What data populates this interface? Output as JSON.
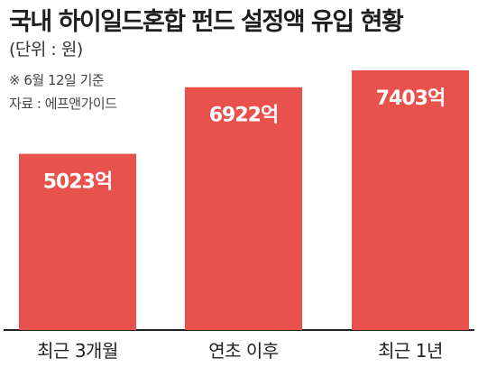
{
  "chart_data": {
    "type": "bar",
    "title": "국내 하이일드혼합 펀드 설정액 유입 현황",
    "unit_label": "(단위 : 원)",
    "notes": [
      "※ 6월 12일 기준",
      "자료 : 에프앤가이드"
    ],
    "categories": [
      "최근 3개월",
      "연초 이후",
      "최근 1년"
    ],
    "values": [
      5023,
      6922,
      7403
    ],
    "value_labels": [
      "5023억",
      "6922억",
      "7403억"
    ],
    "ylim": [
      0,
      8000
    ],
    "grid": false,
    "legend": "none",
    "colors": {
      "bar": "#e8514c",
      "bar_label": "#ffffff",
      "axis": "#222222",
      "text": "#222222"
    }
  }
}
